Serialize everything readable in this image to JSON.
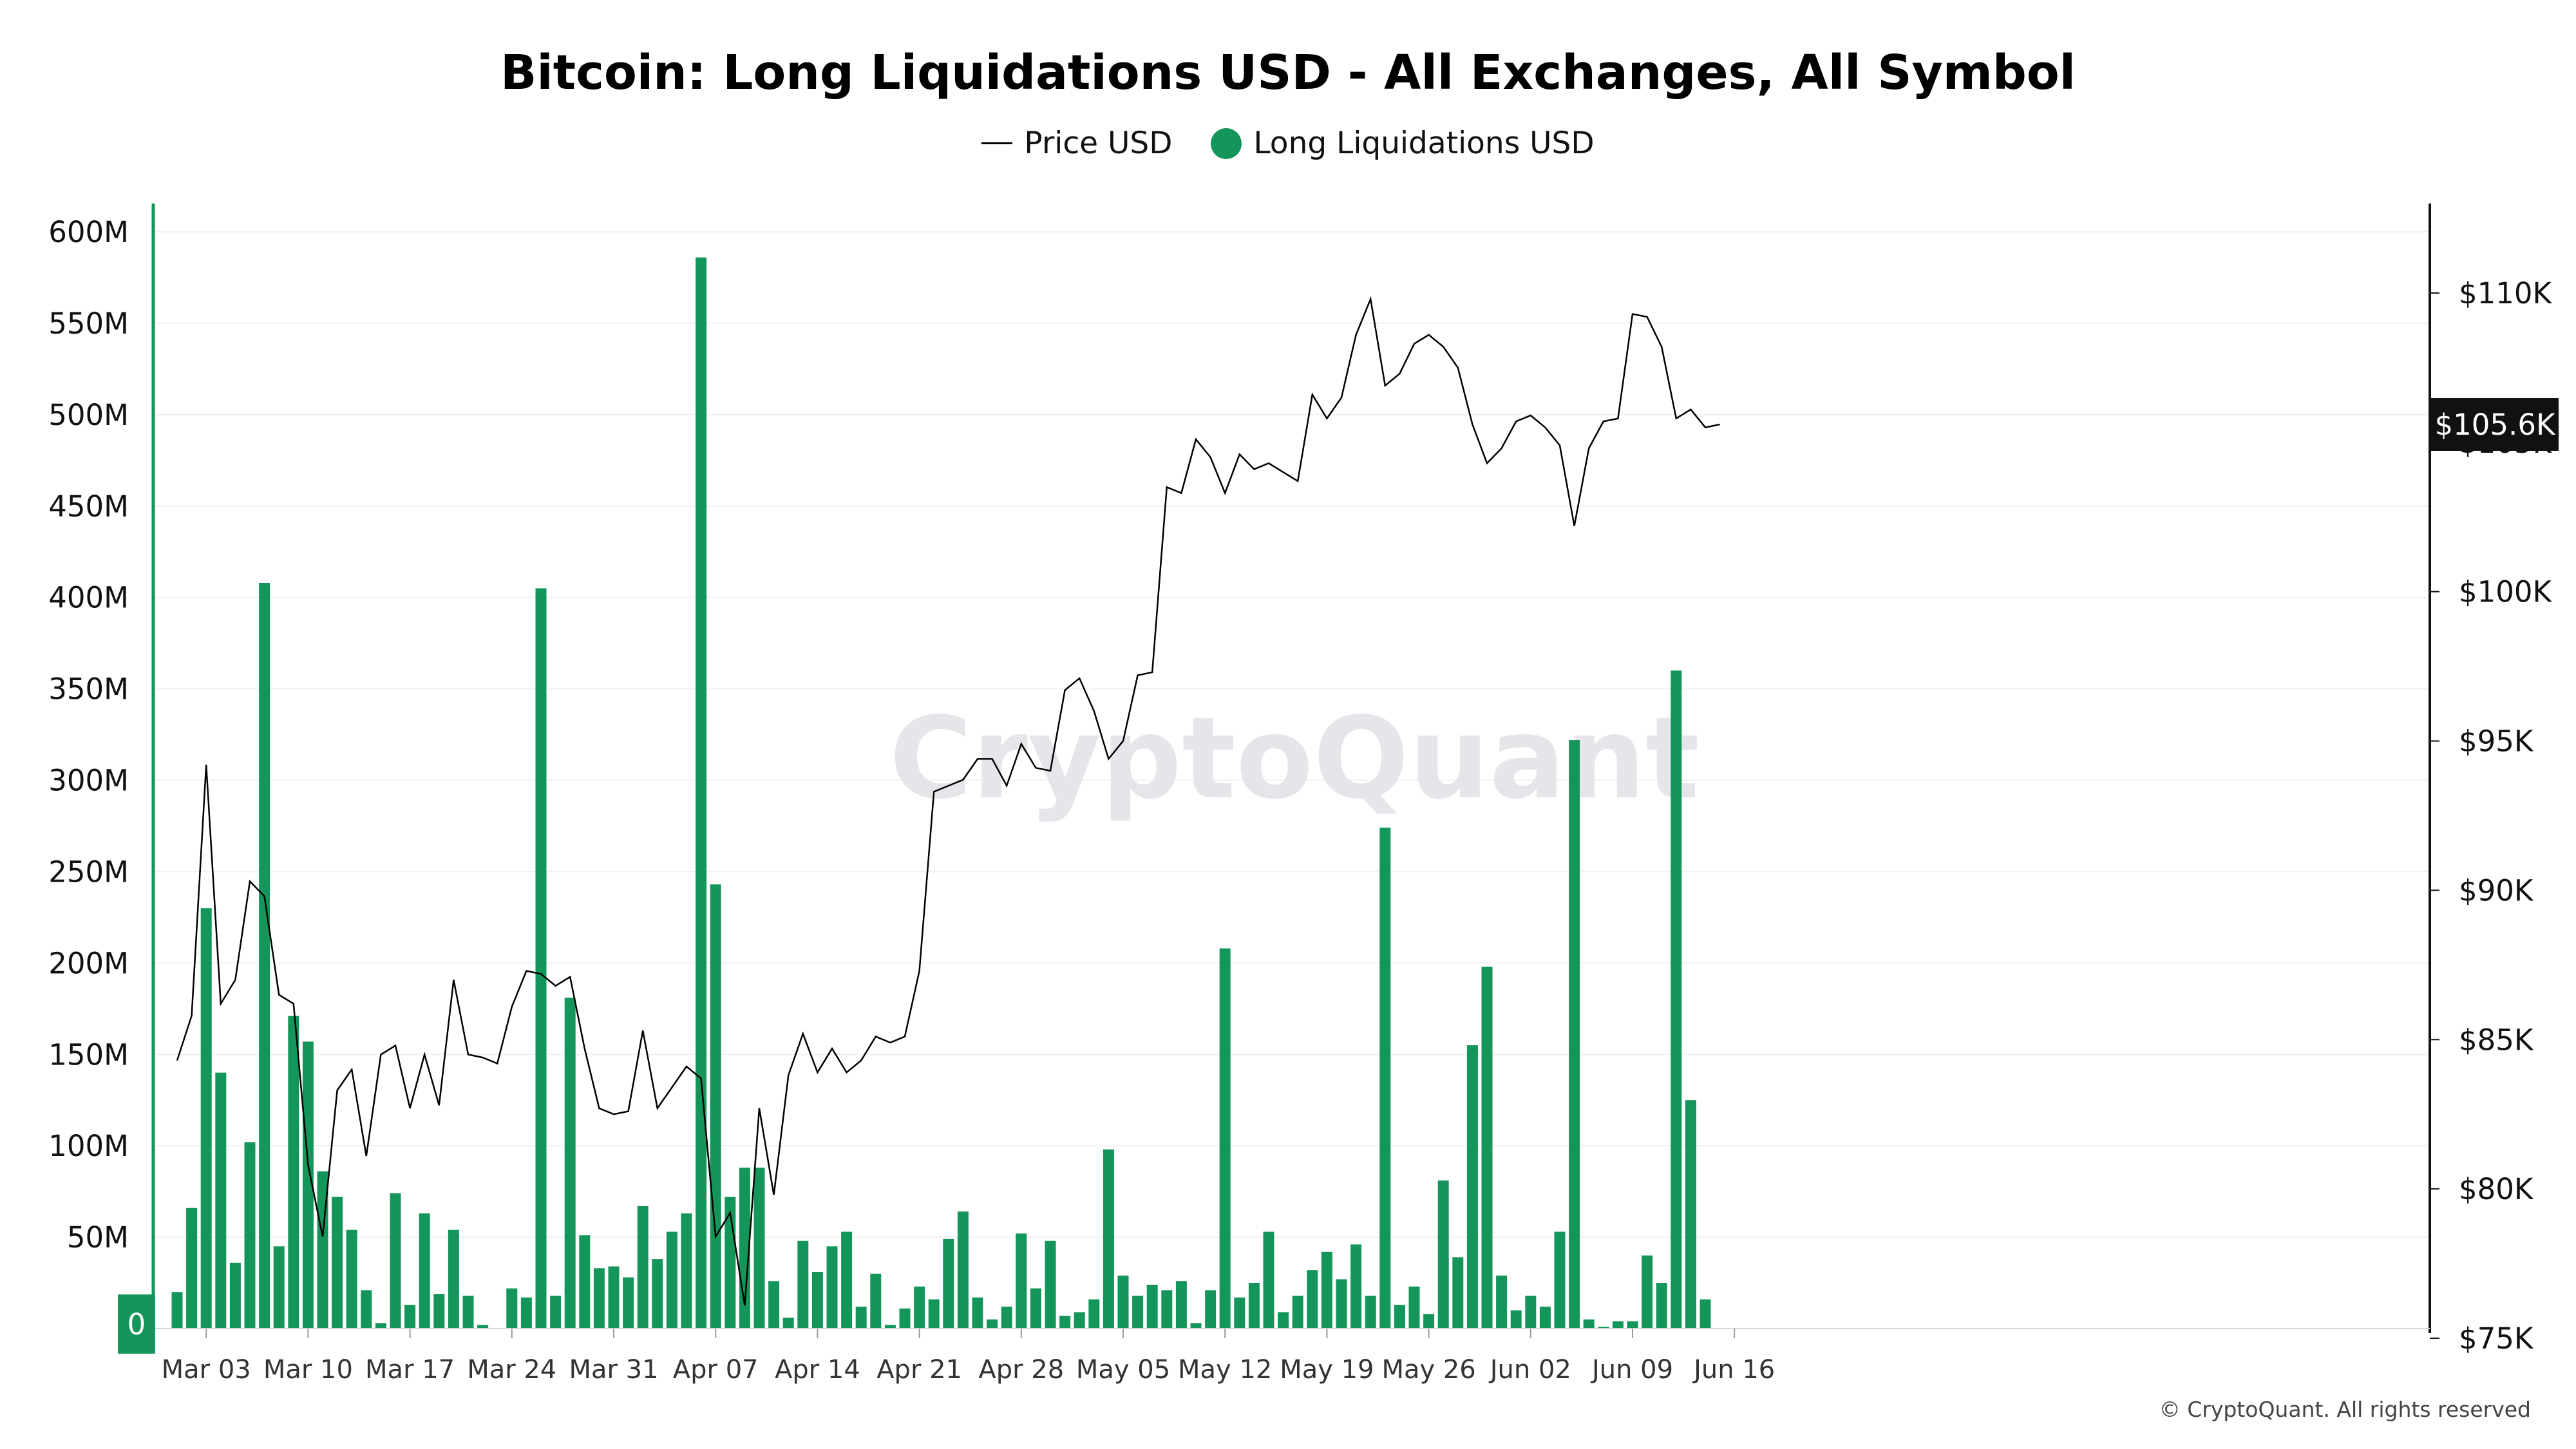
{
  "colors": {
    "bar": "#14965a",
    "price_line": "#000000",
    "badge_bg": "#111111",
    "left_badge_bg": "#14965a"
  },
  "watermark": "CryptoQuant",
  "copyright": "© CryptoQuant. All rights reserved",
  "left_zero_badge": "0",
  "chart_data": {
    "type": "bar",
    "title": "Bitcoin: Long Liquidations USD - All Exchanges, All Symbol",
    "legend": [
      "Price USD",
      "Long Liquidations USD"
    ],
    "x_tick_labels": [
      "Mar 03",
      "Mar 10",
      "Mar 17",
      "Mar 24",
      "Mar 31",
      "Apr 07",
      "Apr 14",
      "Apr 21",
      "Apr 28",
      "May 05",
      "May 12",
      "May 19",
      "May 26",
      "Jun 02",
      "Jun 09",
      "Jun 16"
    ],
    "x_tick_index": [
      2,
      9,
      16,
      23,
      30,
      37,
      44,
      51,
      58,
      65,
      72,
      79,
      86,
      93,
      100,
      107
    ],
    "y_left": {
      "min": 0,
      "max": 600,
      "ticks": [
        0,
        50,
        100,
        150,
        200,
        250,
        300,
        350,
        400,
        450,
        500,
        550,
        600
      ],
      "labels": [
        "0",
        "50M",
        "100M",
        "150M",
        "200M",
        "250M",
        "300M",
        "350M",
        "400M",
        "450M",
        "500M",
        "550M",
        "600M"
      ]
    },
    "y_right": {
      "min": 75000,
      "max": 112000,
      "ticks": [
        75000,
        80000,
        85000,
        90000,
        95000,
        100000,
        105000,
        110000
      ],
      "labels": [
        "$75K",
        "$80K",
        "$85K",
        "$90K",
        "$95K",
        "$100K",
        "$105K",
        "$110K"
      ]
    },
    "last_price_label": "$105.6K",
    "last_price_value": 105600,
    "series": [
      {
        "name": "Long Liquidations USD",
        "kind": "bar",
        "unit": "M USD",
        "values": [
          20,
          66,
          230,
          140,
          36,
          102,
          408,
          45,
          171,
          157,
          86,
          72,
          54,
          21,
          3,
          74,
          13,
          63,
          19,
          54,
          18,
          2,
          0,
          22,
          17,
          405,
          18,
          181,
          51,
          33,
          34,
          28,
          67,
          38,
          53,
          63,
          586,
          243,
          72,
          88,
          88,
          26,
          6,
          48,
          31,
          45,
          53,
          12,
          30,
          2,
          11,
          23,
          16,
          49,
          64,
          17,
          5,
          12,
          52,
          22,
          48,
          7,
          9,
          16,
          98,
          29,
          18,
          24,
          21,
          26,
          3,
          21,
          208,
          17,
          25,
          53,
          9,
          18,
          32,
          42,
          27,
          46,
          18,
          274,
          13,
          23,
          8,
          81,
          39,
          155,
          198,
          29,
          10,
          18,
          12,
          53,
          322,
          5,
          1,
          4,
          4,
          40,
          25,
          360,
          125,
          16
        ]
      },
      {
        "name": "Price USD",
        "kind": "line",
        "unit": "USD",
        "values": [
          84300,
          85800,
          94200,
          86200,
          87000,
          90300,
          89800,
          86500,
          86200,
          80800,
          78400,
          83300,
          84000,
          81100,
          84500,
          84800,
          82700,
          84500,
          82800,
          87000,
          84500,
          84400,
          84200,
          86100,
          87300,
          87200,
          86800,
          87100,
          84700,
          82700,
          82500,
          82600,
          85300,
          82700,
          83400,
          84100,
          83700,
          78400,
          79200,
          76100,
          82700,
          79800,
          83800,
          85200,
          83900,
          84700,
          83900,
          84300,
          85100,
          84900,
          85100,
          87300,
          93300,
          93500,
          93700,
          94400,
          94400,
          93500,
          94900,
          94100,
          94000,
          96700,
          97100,
          96000,
          94400,
          95000,
          97200,
          97300,
          103500,
          103300,
          105100,
          104500,
          103300,
          104600,
          104100,
          104300,
          104000,
          103700,
          106600,
          105800,
          106500,
          108600,
          109800,
          106900,
          107300,
          108300,
          108600,
          108200,
          107500,
          105600,
          104300,
          104800,
          105700,
          105900,
          105500,
          104900,
          102200,
          104800,
          105700,
          105800,
          109300,
          109200,
          108200,
          105800,
          106100,
          105500,
          105600
        ]
      }
    ]
  }
}
